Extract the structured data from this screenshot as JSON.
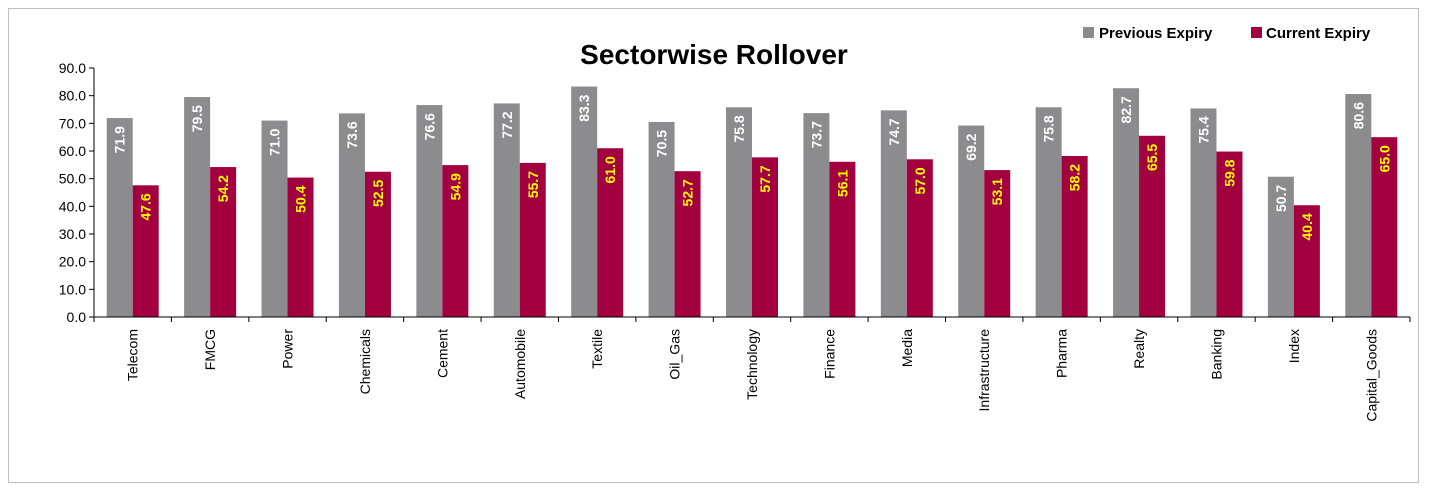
{
  "chart_data": {
    "type": "bar",
    "title": "Sectorwise Rollover",
    "categories": [
      "Telecom",
      "FMCG",
      "Power",
      "Chemicals",
      "Cement",
      "Automobile",
      "Textile",
      "Oil_Gas",
      "Technology",
      "Finance",
      "Media",
      "Infrastructure",
      "Pharma",
      "Realty",
      "Banking",
      "Index",
      "Capital_Goods"
    ],
    "series": [
      {
        "name": "Previous Expiry",
        "color": "#8c8c8f",
        "values": [
          71.9,
          79.5,
          71.0,
          73.6,
          76.6,
          77.2,
          83.3,
          70.5,
          75.8,
          73.7,
          74.7,
          69.2,
          75.8,
          82.7,
          75.4,
          50.7,
          80.6
        ]
      },
      {
        "name": "Current Expiry",
        "color": "#a3003f",
        "values": [
          47.6,
          54.2,
          50.4,
          52.5,
          54.9,
          55.7,
          61.0,
          52.7,
          57.7,
          56.1,
          57.0,
          53.1,
          58.2,
          65.5,
          59.8,
          40.4,
          65.0
        ]
      }
    ],
    "ylim": [
      0,
      90
    ],
    "yticks": [
      "0.0",
      "10.0",
      "20.0",
      "30.0",
      "40.0",
      "50.0",
      "60.0",
      "70.0",
      "80.0",
      "90.0"
    ],
    "xlabel": "",
    "ylabel": "",
    "grid": false,
    "legend_position": "top-right",
    "data_labels": true
  }
}
